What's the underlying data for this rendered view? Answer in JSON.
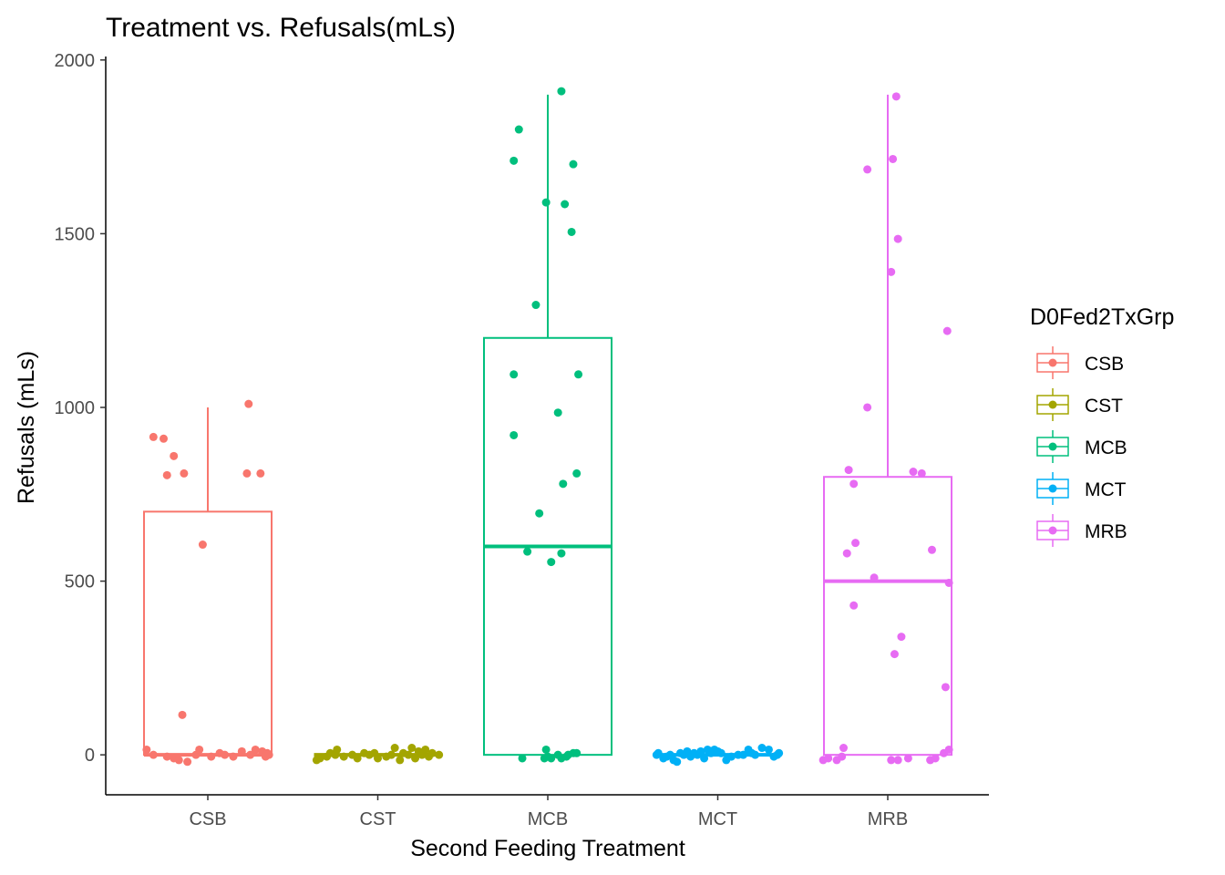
{
  "chart_data": {
    "type": "box",
    "title": "Treatment vs. Refusals(mLs)",
    "xlabel": "Second Feeding Treatment",
    "ylabel": "Refusals (mLs)",
    "ylim": [
      -115,
      2010
    ],
    "yticks": [
      0,
      500,
      1000,
      1500,
      2000
    ],
    "categories": [
      "CSB",
      "CST",
      "MCB",
      "MCT",
      "MRB"
    ],
    "legend": {
      "title": "D0Fed2TxGrp",
      "position": "right"
    },
    "grid": false,
    "series": [
      {
        "name": "CSB",
        "color": "#F8766D",
        "box": {
          "min": 0,
          "q1": 0,
          "median": 0,
          "q3": 700,
          "max": 1000
        },
        "points": [
          [
            -0.36,
            15
          ],
          [
            -0.32,
            0
          ],
          [
            -0.24,
            -5
          ],
          [
            -0.2,
            -10
          ],
          [
            -0.17,
            -15
          ],
          [
            -0.12,
            -20
          ],
          [
            -0.07,
            0
          ],
          [
            -0.05,
            15
          ],
          [
            0.02,
            -5
          ],
          [
            0.07,
            5
          ],
          [
            0.1,
            0
          ],
          [
            0.15,
            -5
          ],
          [
            0.2,
            10
          ],
          [
            0.25,
            0
          ],
          [
            0.28,
            15
          ],
          [
            0.32,
            10
          ],
          [
            0.34,
            -5
          ],
          [
            0.35,
            5
          ],
          [
            0.36,
            0
          ],
          [
            -0.32,
            915
          ],
          [
            -0.26,
            910
          ],
          [
            -0.2,
            860
          ],
          [
            -0.24,
            805
          ],
          [
            -0.14,
            810
          ],
          [
            0.24,
            1010
          ],
          [
            0.23,
            810
          ],
          [
            0.31,
            810
          ],
          [
            -0.03,
            605
          ],
          [
            -0.15,
            115
          ]
        ]
      },
      {
        "name": "CST",
        "color": "#A3A500",
        "box": {
          "min": 0,
          "q1": 0,
          "median": 0,
          "q3": 0,
          "max": 0
        },
        "points": [
          [
            -0.36,
            -15
          ],
          [
            -0.34,
            -10
          ],
          [
            -0.3,
            -5
          ],
          [
            -0.28,
            5
          ],
          [
            -0.25,
            0
          ],
          [
            -0.24,
            15
          ],
          [
            -0.2,
            -5
          ],
          [
            -0.15,
            0
          ],
          [
            -0.12,
            -10
          ],
          [
            -0.08,
            5
          ],
          [
            -0.05,
            0
          ],
          [
            -0.02,
            5
          ],
          [
            0.0,
            -10
          ],
          [
            0.05,
            -5
          ],
          [
            0.08,
            0
          ],
          [
            0.1,
            20
          ],
          [
            0.13,
            -15
          ],
          [
            0.15,
            5
          ],
          [
            0.18,
            0
          ],
          [
            0.2,
            20
          ],
          [
            0.22,
            -10
          ],
          [
            0.24,
            10
          ],
          [
            0.26,
            0
          ],
          [
            0.28,
            15
          ],
          [
            0.3,
            -5
          ],
          [
            0.32,
            5
          ],
          [
            0.36,
            0
          ]
        ]
      },
      {
        "name": "MCB",
        "color": "#00BF7D",
        "box": {
          "min": 0,
          "q1": 0,
          "median": 600,
          "q3": 1200,
          "max": 1900
        },
        "points": [
          [
            0.08,
            1910
          ],
          [
            -0.17,
            1800
          ],
          [
            -0.2,
            1710
          ],
          [
            0.15,
            1700
          ],
          [
            -0.01,
            1590
          ],
          [
            0.1,
            1585
          ],
          [
            0.14,
            1505
          ],
          [
            -0.07,
            1295
          ],
          [
            -0.2,
            1095
          ],
          [
            0.18,
            1095
          ],
          [
            0.06,
            985
          ],
          [
            -0.2,
            920
          ],
          [
            0.17,
            810
          ],
          [
            0.09,
            780
          ],
          [
            -0.05,
            695
          ],
          [
            -0.12,
            585
          ],
          [
            0.08,
            580
          ],
          [
            0.02,
            555
          ],
          [
            -0.15,
            -10
          ],
          [
            -0.02,
            -10
          ],
          [
            -0.01,
            15
          ],
          [
            0.0,
            -5
          ],
          [
            0.02,
            -10
          ],
          [
            0.06,
            0
          ],
          [
            0.08,
            -10
          ],
          [
            0.11,
            -5
          ],
          [
            0.12,
            0
          ],
          [
            0.15,
            5
          ],
          [
            0.17,
            5
          ]
        ]
      },
      {
        "name": "MCT",
        "color": "#00B0F6",
        "box": {
          "min": 0,
          "q1": 0,
          "median": 0,
          "q3": 0,
          "max": 0
        },
        "points": [
          [
            -0.36,
            0
          ],
          [
            -0.35,
            5
          ],
          [
            -0.32,
            -10
          ],
          [
            -0.3,
            -5
          ],
          [
            -0.28,
            0
          ],
          [
            -0.26,
            -15
          ],
          [
            -0.24,
            -20
          ],
          [
            -0.22,
            5
          ],
          [
            -0.2,
            0
          ],
          [
            -0.18,
            10
          ],
          [
            -0.16,
            -5
          ],
          [
            -0.14,
            5
          ],
          [
            -0.12,
            0
          ],
          [
            -0.1,
            10
          ],
          [
            -0.08,
            -10
          ],
          [
            -0.06,
            15
          ],
          [
            -0.04,
            5
          ],
          [
            -0.02,
            15
          ],
          [
            0.0,
            10
          ],
          [
            0.02,
            5
          ],
          [
            0.05,
            -15
          ],
          [
            0.08,
            -5
          ],
          [
            0.12,
            0
          ],
          [
            0.15,
            0
          ],
          [
            0.18,
            15
          ],
          [
            0.2,
            5
          ],
          [
            0.22,
            0
          ],
          [
            0.26,
            20
          ],
          [
            0.3,
            15
          ],
          [
            0.33,
            -5
          ],
          [
            0.35,
            0
          ],
          [
            0.36,
            5
          ]
        ]
      },
      {
        "name": "MRB",
        "color": "#E76BF3",
        "box": {
          "min": 0,
          "q1": 0,
          "median": 500,
          "q3": 800,
          "max": 1900
        },
        "points": [
          [
            0.05,
            1895
          ],
          [
            -0.12,
            1685
          ],
          [
            0.03,
            1715
          ],
          [
            0.06,
            1485
          ],
          [
            0.02,
            1390
          ],
          [
            0.35,
            1220
          ],
          [
            -0.12,
            1000
          ],
          [
            -0.23,
            820
          ],
          [
            -0.2,
            780
          ],
          [
            0.15,
            815
          ],
          [
            0.2,
            810
          ],
          [
            -0.19,
            610
          ],
          [
            -0.24,
            580
          ],
          [
            0.26,
            590
          ],
          [
            -0.08,
            510
          ],
          [
            0.36,
            495
          ],
          [
            -0.2,
            430
          ],
          [
            0.08,
            340
          ],
          [
            0.04,
            290
          ],
          [
            0.34,
            195
          ],
          [
            -0.38,
            -15
          ],
          [
            -0.35,
            -10
          ],
          [
            -0.3,
            -15
          ],
          [
            -0.27,
            -5
          ],
          [
            -0.26,
            20
          ],
          [
            0.02,
            -15
          ],
          [
            0.06,
            -15
          ],
          [
            0.12,
            -10
          ],
          [
            0.25,
            -15
          ],
          [
            0.28,
            -10
          ],
          [
            0.33,
            5
          ],
          [
            0.36,
            15
          ]
        ]
      }
    ]
  }
}
